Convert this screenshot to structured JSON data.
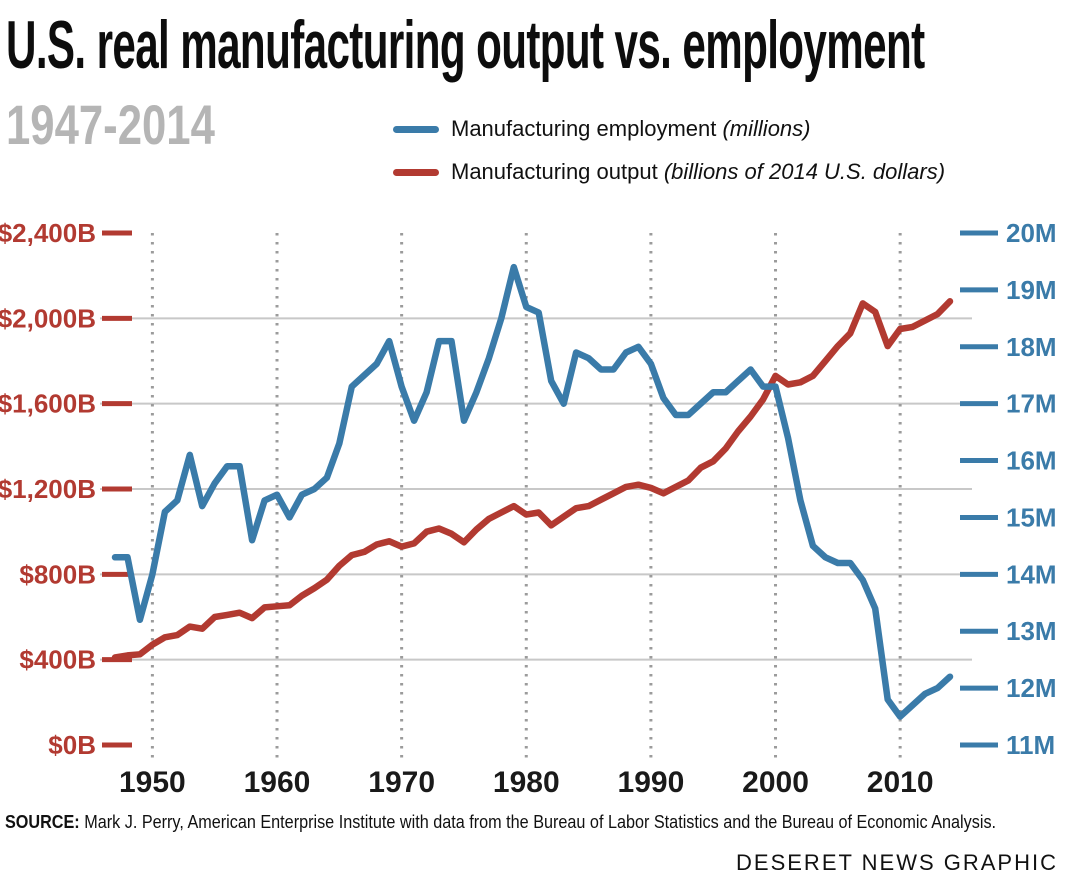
{
  "header": {
    "title": "U.S. real manufacturing output vs. employment",
    "subtitle": "1947-2014"
  },
  "legend": [
    {
      "label": "Manufacturing employment",
      "note": "(millions)",
      "color": "#3a7ba9"
    },
    {
      "label": "Manufacturing output",
      "note": "(billions of 2014 U.S. dollars)",
      "color": "#b23a31"
    }
  ],
  "chart_data": {
    "type": "line",
    "title": "U.S. real manufacturing output vs. employment",
    "subtitle": "1947-2014",
    "x": [
      1947,
      1948,
      1949,
      1950,
      1951,
      1952,
      1953,
      1954,
      1955,
      1956,
      1957,
      1958,
      1959,
      1960,
      1961,
      1962,
      1963,
      1964,
      1965,
      1966,
      1967,
      1968,
      1969,
      1970,
      1971,
      1972,
      1973,
      1974,
      1975,
      1976,
      1977,
      1978,
      1979,
      1980,
      1981,
      1982,
      1983,
      1984,
      1985,
      1986,
      1987,
      1988,
      1989,
      1990,
      1991,
      1992,
      1993,
      1994,
      1995,
      1996,
      1997,
      1998,
      1999,
      2000,
      2001,
      2002,
      2003,
      2004,
      2005,
      2006,
      2007,
      2008,
      2009,
      2010,
      2011,
      2012,
      2013,
      2014
    ],
    "series": [
      {
        "name": "Manufacturing employment",
        "unit": "millions",
        "axis": "right",
        "color": "#3a7ba9",
        "values": [
          14.3,
          14.3,
          13.2,
          14.0,
          15.1,
          15.3,
          16.1,
          15.2,
          15.6,
          15.9,
          15.9,
          14.6,
          15.3,
          15.4,
          15.0,
          15.4,
          15.5,
          15.7,
          16.3,
          17.3,
          17.5,
          17.7,
          18.1,
          17.3,
          16.7,
          17.2,
          18.1,
          18.1,
          16.7,
          17.2,
          17.8,
          18.5,
          19.4,
          18.7,
          18.6,
          17.4,
          17.0,
          17.9,
          17.8,
          17.6,
          17.6,
          17.9,
          18.0,
          17.7,
          17.1,
          16.8,
          16.8,
          17.0,
          17.2,
          17.2,
          17.4,
          17.6,
          17.3,
          17.3,
          16.4,
          15.3,
          14.5,
          14.3,
          14.2,
          14.2,
          13.9,
          13.4,
          11.8,
          11.5,
          11.7,
          11.9,
          12.0,
          12.2
        ]
      },
      {
        "name": "Manufacturing output",
        "unit": "billions of 2014 U.S. dollars",
        "axis": "left",
        "color": "#b23a31",
        "values": [
          410,
          420,
          425,
          470,
          505,
          515,
          555,
          545,
          600,
          610,
          620,
          595,
          645,
          650,
          655,
          700,
          735,
          775,
          840,
          890,
          905,
          940,
          955,
          930,
          945,
          1000,
          1015,
          990,
          950,
          1010,
          1060,
          1090,
          1120,
          1080,
          1090,
          1030,
          1070,
          1110,
          1120,
          1150,
          1180,
          1210,
          1220,
          1205,
          1180,
          1210,
          1240,
          1300,
          1330,
          1390,
          1470,
          1540,
          1620,
          1730,
          1690,
          1700,
          1730,
          1800,
          1870,
          1930,
          2070,
          2030,
          1870,
          1950,
          1960,
          1990,
          2020,
          2080
        ]
      }
    ],
    "left_axis": {
      "range": [
        0,
        2400
      ],
      "tick_values": [
        2400,
        2000,
        1600,
        1200,
        800,
        400,
        0
      ],
      "tick_labels": [
        "$2,400B",
        "$2,000B",
        "$1,600B",
        "$1,200B",
        "$800B",
        "$400B",
        "$0B"
      ],
      "color": "#b23a31"
    },
    "right_axis": {
      "range": [
        11,
        20
      ],
      "tick_values": [
        20,
        19,
        18,
        17,
        16,
        15,
        14,
        13,
        12,
        11
      ],
      "tick_labels": [
        "20M",
        "19M",
        "18M",
        "17M",
        "16M",
        "15M",
        "14M",
        "13M",
        "12M",
        "11M"
      ],
      "color": "#3a7ba9"
    },
    "x_axis": {
      "tick_values": [
        1950,
        1960,
        1970,
        1980,
        1990,
        2000,
        2010
      ],
      "tick_labels": [
        "1950",
        "1960",
        "1970",
        "1980",
        "1990",
        "2000",
        "2010"
      ],
      "label_color": "#1a1a1a"
    },
    "grid": {
      "horizontal_values": [
        400,
        800,
        1200,
        1600,
        2000
      ],
      "horizontal_style": "solid",
      "horizontal_color": "#c8c8c8",
      "vertical_years": [
        1950,
        1960,
        1970,
        1980,
        1990,
        2000,
        2010
      ],
      "vertical_style": "dotted",
      "vertical_color": "#9b9b9b"
    },
    "legend_position": "top"
  },
  "footer": {
    "source_label": "SOURCE:",
    "source_text": "Mark J. Perry, American Enterprise Institute with data from the Bureau of Labor Statistics and the Bureau of Economic Analysis.",
    "credit": "DESERET NEWS GRAPHIC"
  }
}
